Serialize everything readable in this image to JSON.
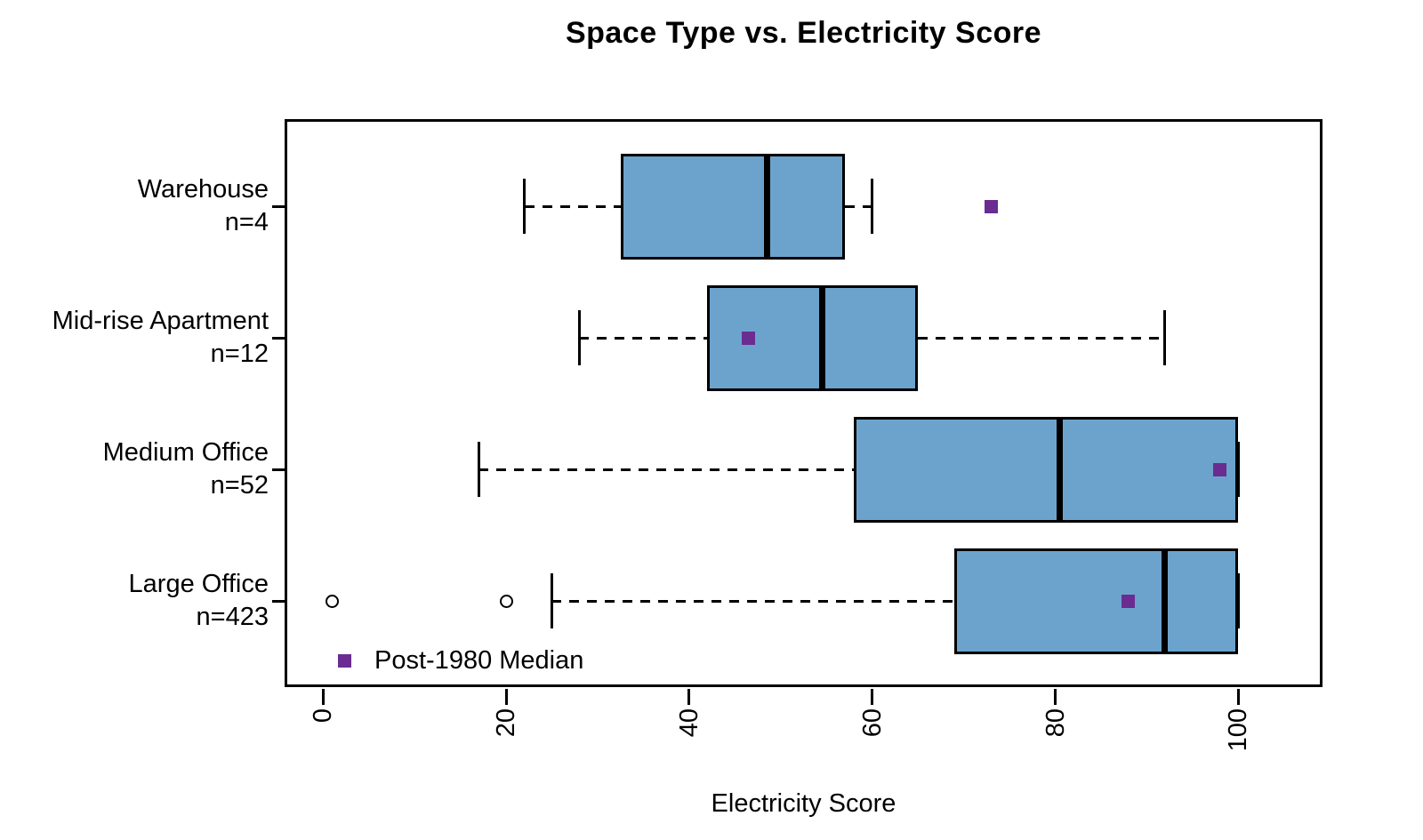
{
  "title": "Space Type vs. Electricity Score",
  "chart_data": {
    "type": "boxplot-horizontal",
    "title": "Space Type vs. Electricity Score",
    "xlabel": "Electricity Score",
    "x_ticks": [
      0,
      20,
      40,
      60,
      80,
      100
    ],
    "xlim": [
      -4.2,
      109.2
    ],
    "grid": false,
    "legend_label": "Post-1980 Median",
    "legend_position": "bottom-left-inside",
    "colors": {
      "box_fill": "#6CA3CD",
      "box_border": "#000000",
      "median_line": "#000000",
      "whisker": "#000000",
      "post1980_marker": "#6B2C91",
      "outlier_stroke": "#000000"
    },
    "boxes": [
      {
        "label": "Warehouse",
        "n_label": "n=4",
        "whisker_low": 22,
        "q1": 32.5,
        "median": 48.5,
        "q3": 57,
        "whisker_high": 60,
        "outliers": [],
        "post1980_median": 73
      },
      {
        "label": "Mid-rise Apartment",
        "n_label": "n=12",
        "whisker_low": 28,
        "q1": 42,
        "median": 54.5,
        "q3": 65,
        "whisker_high": 92,
        "outliers": [],
        "post1980_median": 46.5
      },
      {
        "label": "Medium Office",
        "n_label": "n=52",
        "whisker_low": 17,
        "q1": 58,
        "median": 80.5,
        "q3": 100,
        "whisker_high": 100,
        "outliers": [],
        "post1980_median": 98
      },
      {
        "label": "Large Office",
        "n_label": "n=423",
        "whisker_low": 25,
        "q1": 69,
        "median": 92,
        "q3": 100,
        "whisker_high": 100,
        "outliers": [
          1,
          20
        ],
        "post1980_median": 88
      }
    ]
  }
}
